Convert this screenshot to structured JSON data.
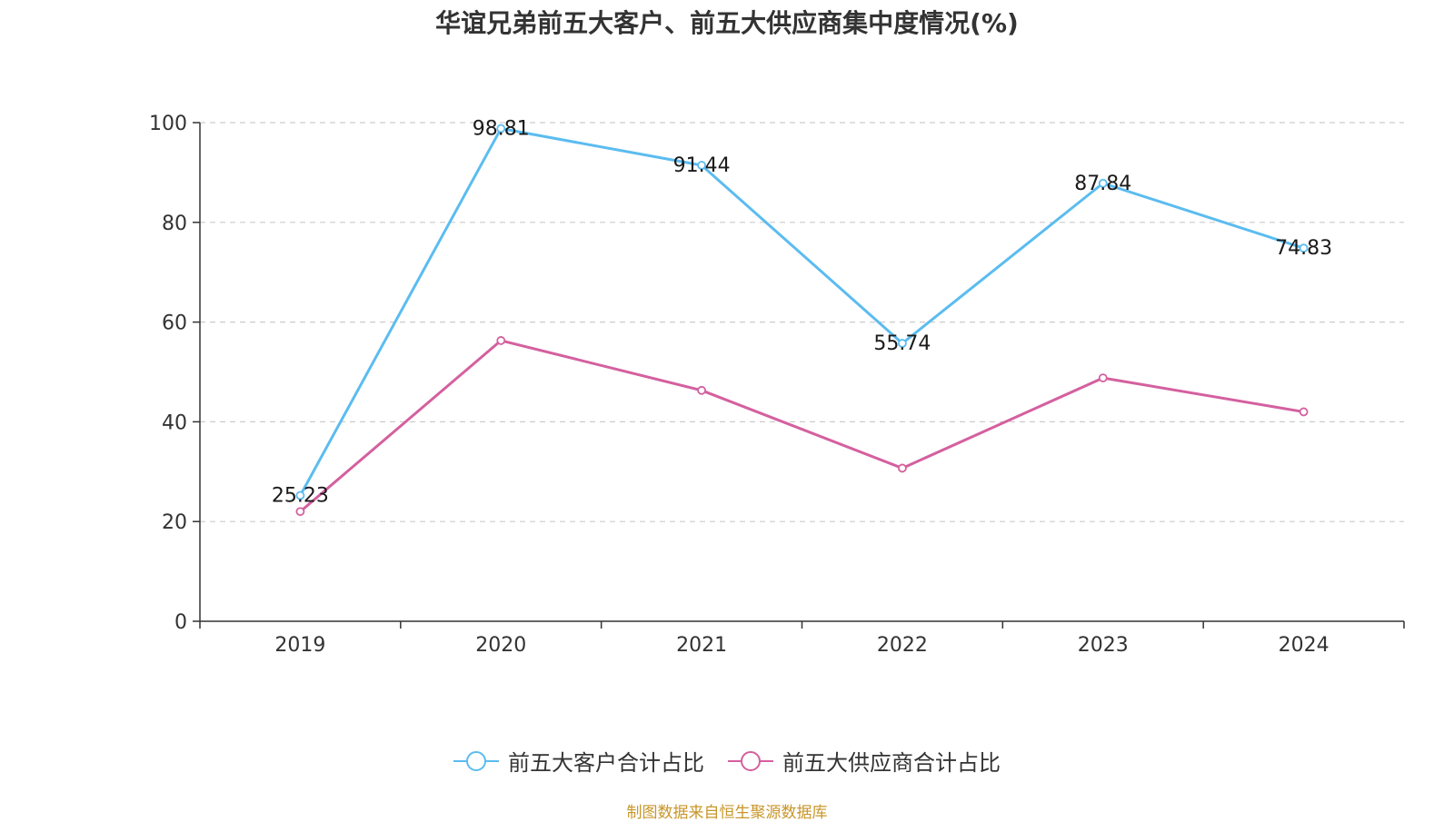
{
  "chart_data": {
    "type": "line",
    "title": "华谊兄弟前五大客户、前五大供应商集中度情况(%)",
    "categories": [
      "2019",
      "2020",
      "2021",
      "2022",
      "2023",
      "2024"
    ],
    "ylim": [
      0,
      100
    ],
    "yticks": [
      0,
      20,
      40,
      60,
      80,
      100
    ],
    "grid": true,
    "legend_position": "bottom",
    "xlabel": "",
    "ylabel": "",
    "series": [
      {
        "name": "前五大客户合计占比",
        "color": "#5bbcf0",
        "values": [
          25.23,
          98.81,
          91.44,
          55.74,
          87.84,
          74.83
        ],
        "labels": [
          "25.23",
          "98.81",
          "91.44",
          "55.74",
          "87.84",
          "74.83"
        ]
      },
      {
        "name": "前五大供应商合计占比",
        "color": "#d4609f",
        "values": [
          22.0,
          56.3,
          46.3,
          30.7,
          48.8,
          42.0
        ],
        "labels": null
      }
    ]
  },
  "source_note": "制图数据来自恒生聚源数据库"
}
